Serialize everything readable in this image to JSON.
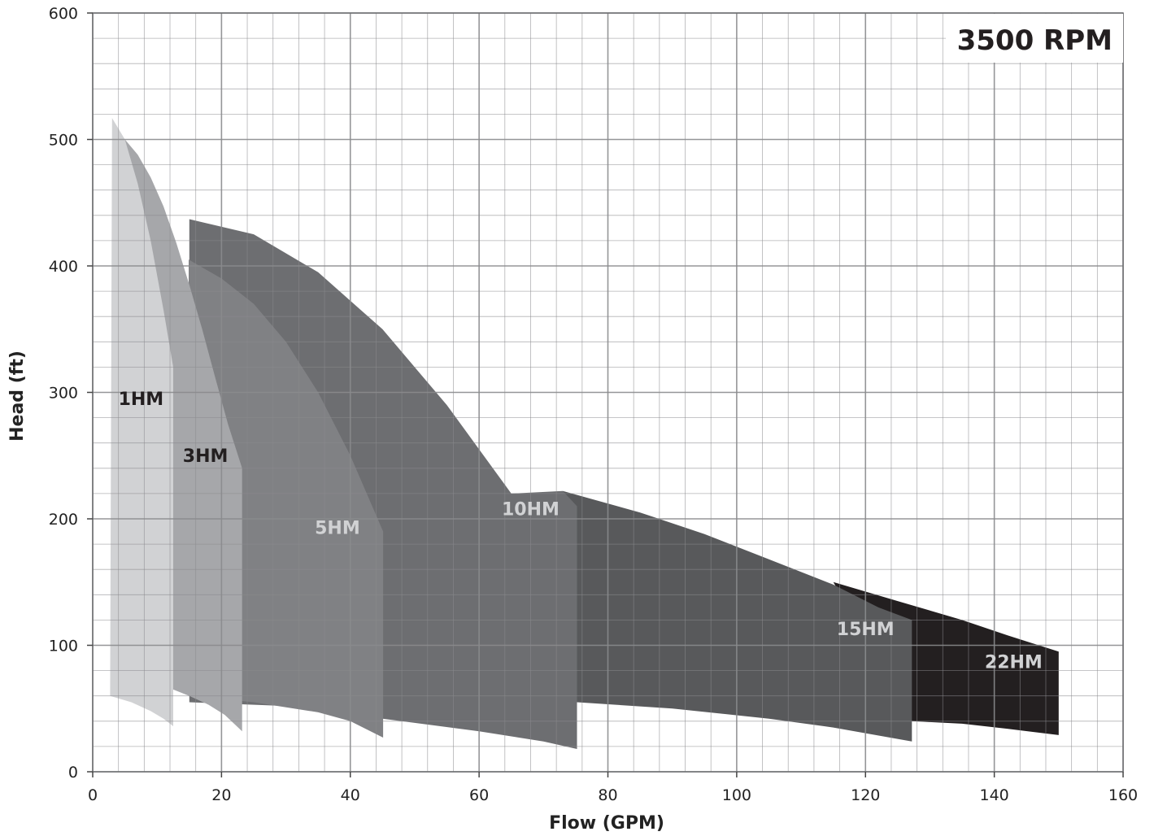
{
  "chart_data": {
    "type": "area",
    "title": "3500 RPM",
    "xlabel": "Flow (GPM)",
    "ylabel": "Head (ft)",
    "xlim": [
      0,
      160
    ],
    "ylim": [
      0,
      600
    ],
    "x_ticks": [
      "0",
      "20",
      "40",
      "60",
      "80",
      "100",
      "120",
      "140",
      "160"
    ],
    "y_ticks": [
      "0",
      "100",
      "200",
      "300",
      "400",
      "500",
      "600"
    ],
    "x_major_step": 20,
    "y_major_step": 100,
    "x_minor_step": 4,
    "y_minor_step": 20,
    "grid": true,
    "legend": "none",
    "series": [
      {
        "name": "1HM",
        "color": "#d1d2d4",
        "label_color": "#231f20",
        "label_at": [
          7.5,
          290
        ],
        "top": [
          [
            3,
            517
          ],
          [
            5,
            500
          ],
          [
            7,
            465
          ],
          [
            9,
            420
          ],
          [
            11,
            365
          ],
          [
            12.5,
            320
          ]
        ],
        "bottom": [
          [
            2.7,
            60
          ],
          [
            6,
            55
          ],
          [
            9,
            48
          ],
          [
            11,
            42
          ],
          [
            12.5,
            36
          ]
        ]
      },
      {
        "name": "3HM",
        "color": "#a6a7aa",
        "label_color": "#231f20",
        "label_at": [
          17.5,
          245
        ],
        "top": [
          [
            5,
            500
          ],
          [
            7,
            488
          ],
          [
            9,
            470
          ],
          [
            11,
            447
          ],
          [
            13,
            418
          ],
          [
            15,
            385
          ],
          [
            17,
            350
          ],
          [
            19,
            312
          ],
          [
            21,
            275
          ],
          [
            23.2,
            240
          ]
        ],
        "bottom": [
          [
            12.5,
            65
          ],
          [
            15,
            60
          ],
          [
            18,
            53
          ],
          [
            20.5,
            45
          ],
          [
            23.2,
            32
          ]
        ]
      },
      {
        "name": "5HM",
        "color": "#808184",
        "label_color": "#d1d2d4",
        "label_at": [
          38,
          188
        ],
        "top": [
          [
            14.9,
            405
          ],
          [
            20,
            390
          ],
          [
            25,
            370
          ],
          [
            30,
            340
          ],
          [
            35,
            300
          ],
          [
            40,
            250
          ],
          [
            45.1,
            190
          ]
        ],
        "bottom": [
          [
            14.9,
            60
          ],
          [
            25,
            55
          ],
          [
            35,
            47
          ],
          [
            40,
            40
          ],
          [
            45.1,
            27
          ]
        ]
      },
      {
        "name": "10HM",
        "color": "#6d6e71",
        "label_color": "#d1d2d4",
        "label_at": [
          68,
          203
        ],
        "top": [
          [
            15,
            437
          ],
          [
            25,
            425
          ],
          [
            35,
            395
          ],
          [
            45,
            350
          ],
          [
            55,
            290
          ],
          [
            65,
            220
          ],
          [
            73,
            222
          ],
          [
            75.2,
            210
          ]
        ],
        "bottom": [
          [
            15,
            55
          ],
          [
            30,
            52
          ],
          [
            45,
            42
          ],
          [
            60,
            32
          ],
          [
            70,
            24
          ],
          [
            75.2,
            18
          ]
        ]
      },
      {
        "name": "15HM",
        "color": "#58595b",
        "label_color": "#d1d2d4",
        "label_at": [
          120,
          108
        ],
        "top": [
          [
            73,
            222
          ],
          [
            85,
            205
          ],
          [
            95,
            188
          ],
          [
            105,
            168
          ],
          [
            115,
            148
          ],
          [
            122,
            130
          ],
          [
            127.2,
            120
          ]
        ],
        "bottom": [
          [
            75.2,
            55
          ],
          [
            90,
            50
          ],
          [
            105,
            42
          ],
          [
            115,
            35
          ],
          [
            127.2,
            24
          ]
        ]
      },
      {
        "name": "22HM",
        "color": "#231f20",
        "label_color": "#d1d2d4",
        "label_at": [
          143,
          82
        ],
        "top": [
          [
            115,
            150
          ],
          [
            125,
            135
          ],
          [
            135,
            120
          ],
          [
            142,
            108
          ],
          [
            150,
            95
          ]
        ],
        "bottom": [
          [
            127.2,
            40
          ],
          [
            135,
            38
          ],
          [
            142,
            34
          ],
          [
            150,
            29
          ]
        ]
      }
    ]
  }
}
